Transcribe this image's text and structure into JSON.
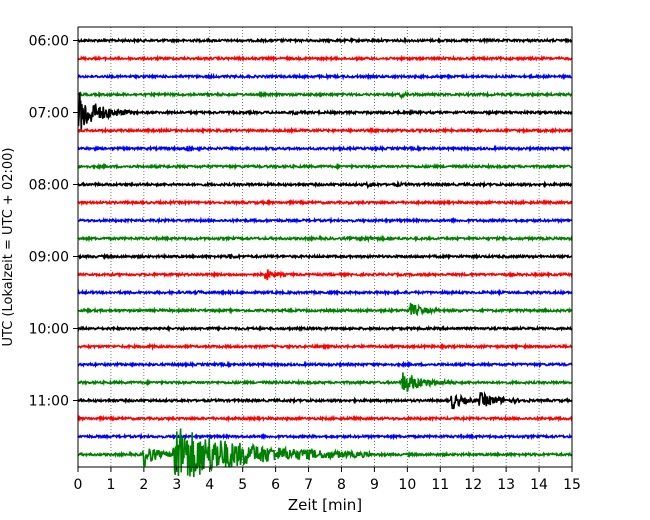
{
  "chart_data": {
    "type": "line",
    "title": "",
    "xlabel": "Zeit  [min]",
    "ylabel": "UTC (Lokalzeit = UTC + 02:00)",
    "xlim": [
      0,
      15
    ],
    "x_ticks": [
      "0",
      "1",
      "2",
      "3",
      "4",
      "5",
      "6",
      "7",
      "8",
      "9",
      "10",
      "11",
      "12",
      "13",
      "14",
      "15"
    ],
    "y_ticks": [
      "06:00",
      "07:00",
      "08:00",
      "09:00",
      "10:00",
      "11:00"
    ],
    "grid": "vertical dotted",
    "row_colors": [
      "#000000",
      "#ff0000",
      "#0000ff",
      "#008000"
    ],
    "rows": [
      {
        "start": "06:00",
        "color": "#000000",
        "events": []
      },
      {
        "start": "06:15",
        "color": "#ff0000",
        "events": []
      },
      {
        "start": "06:30",
        "color": "#0000ff",
        "events": []
      },
      {
        "start": "06:45",
        "color": "#008000",
        "events": [
          {
            "t": 9.8,
            "amp": 0.15,
            "dur": 0.5
          }
        ]
      },
      {
        "start": "07:00",
        "color": "#000000",
        "events": [
          {
            "t": 0.02,
            "amp": 1.8,
            "dur": 1.6
          },
          {
            "t": 6.5,
            "amp": 0.12,
            "dur": 0.4
          }
        ]
      },
      {
        "start": "07:15",
        "color": "#ff0000",
        "events": []
      },
      {
        "start": "07:30",
        "color": "#0000ff",
        "events": [
          {
            "t": 3.3,
            "amp": 0.3,
            "dur": 0.5
          }
        ]
      },
      {
        "start": "07:45",
        "color": "#008000",
        "events": []
      },
      {
        "start": "08:00",
        "color": "#000000",
        "events": [
          {
            "t": 8.8,
            "amp": 0.15,
            "dur": 0.4
          },
          {
            "t": 9.7,
            "amp": 0.1,
            "dur": 0.3
          }
        ]
      },
      {
        "start": "08:15",
        "color": "#ff0000",
        "events": []
      },
      {
        "start": "08:30",
        "color": "#0000ff",
        "events": []
      },
      {
        "start": "08:45",
        "color": "#008000",
        "events": [
          {
            "t": 8.6,
            "amp": 0.2,
            "dur": 0.8
          }
        ]
      },
      {
        "start": "09:00",
        "color": "#000000",
        "events": [
          {
            "t": 4.6,
            "amp": 0.15,
            "dur": 0.4
          }
        ]
      },
      {
        "start": "09:15",
        "color": "#ff0000",
        "events": [
          {
            "t": 5.7,
            "amp": 0.5,
            "dur": 0.6
          }
        ]
      },
      {
        "start": "09:30",
        "color": "#0000ff",
        "events": [
          {
            "t": 3.6,
            "amp": 0.12,
            "dur": 0.3
          }
        ]
      },
      {
        "start": "09:45",
        "color": "#008000",
        "events": [
          {
            "t": 10.1,
            "amp": 0.55,
            "dur": 1.0
          }
        ]
      },
      {
        "start": "10:00",
        "color": "#000000",
        "events": []
      },
      {
        "start": "10:15",
        "color": "#ff0000",
        "events": [
          {
            "t": 2.2,
            "amp": 0.1,
            "dur": 0.2
          }
        ]
      },
      {
        "start": "10:30",
        "color": "#0000ff",
        "events": []
      },
      {
        "start": "10:45",
        "color": "#008000",
        "events": [
          {
            "t": 9.85,
            "amp": 0.9,
            "dur": 1.6
          }
        ]
      },
      {
        "start": "11:00",
        "color": "#000000",
        "events": [
          {
            "t": 11.35,
            "amp": 0.7,
            "dur": 0.9
          },
          {
            "t": 12.2,
            "amp": 0.6,
            "dur": 1.5
          }
        ]
      },
      {
        "start": "11:15",
        "color": "#ff0000",
        "events": []
      },
      {
        "start": "11:30",
        "color": "#0000ff",
        "events": []
      },
      {
        "start": "11:45",
        "color": "#008000",
        "events": [
          {
            "t": 2.0,
            "amp": 1.0,
            "dur": 1.0
          },
          {
            "t": 2.9,
            "amp": 2.5,
            "dur": 6.0
          }
        ]
      }
    ]
  }
}
